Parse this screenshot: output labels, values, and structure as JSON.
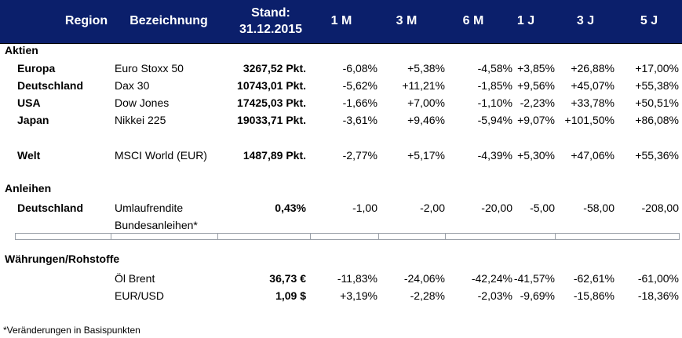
{
  "header": {
    "region": "Region",
    "bezeichnung": "Bezeichnung",
    "stand_line1": "Stand:",
    "stand_line2": "31.12.2015",
    "periods": [
      "1 M",
      "3 M",
      "6 M",
      "1 J",
      "3 J",
      "5 J"
    ]
  },
  "sections": {
    "aktien": "Aktien",
    "anleihen": "Anleihen",
    "waehrungen": "Währungen/Rohstoffe"
  },
  "rows": [
    {
      "region": "Europa",
      "name": "Euro Stoxx 50",
      "stand": "3267,52 Pkt.",
      "values": [
        "-6,08%",
        "+5,38%",
        "-4,58%",
        "+3,85%",
        "+26,88%",
        "+17,00%"
      ]
    },
    {
      "region": "Deutschland",
      "name": "Dax 30",
      "stand": "10743,01 Pkt.",
      "values": [
        "-5,62%",
        "+11,21%",
        "-1,85%",
        "+9,56%",
        "+45,07%",
        "+55,38%"
      ]
    },
    {
      "region": "USA",
      "name": "Dow Jones",
      "stand": "17425,03 Pkt.",
      "values": [
        "-1,66%",
        "+7,00%",
        "-1,10%",
        "-2,23%",
        "+33,78%",
        "+50,51%"
      ]
    },
    {
      "region": "Japan",
      "name": "Nikkei 225",
      "stand": "19033,71 Pkt.",
      "values": [
        "-3,61%",
        "+9,46%",
        "-5,94%",
        "+9,07%",
        "+101,50%",
        "+86,08%"
      ]
    },
    {
      "region": "Welt",
      "name": "MSCI World (EUR)",
      "stand": "1487,89 Pkt.",
      "values": [
        "-2,77%",
        "+5,17%",
        "-4,39%",
        "+5,30%",
        "+47,06%",
        "+55,36%"
      ]
    },
    {
      "region": "Deutschland",
      "name": "Umlaufrendite",
      "name2": "Bundesanleihen*",
      "stand": "0,43%",
      "values": [
        "-1,00",
        "-2,00",
        "-20,00",
        "-5,00",
        "-58,00",
        "-208,00"
      ]
    },
    {
      "region": "",
      "name": "Öl Brent",
      "stand": "36,73 €",
      "values": [
        "-11,83%",
        "-24,06%",
        "-42,24%",
        "-41,57%",
        "-62,61%",
        "-61,00%"
      ]
    },
    {
      "region": "",
      "name": "EUR/USD",
      "stand": "1,09 $",
      "values": [
        "+3,19%",
        "-2,28%",
        "-2,03%",
        "-9,69%",
        "-15,86%",
        "-18,36%"
      ]
    }
  ],
  "footnote": "*Veränderungen in Basispunkten"
}
